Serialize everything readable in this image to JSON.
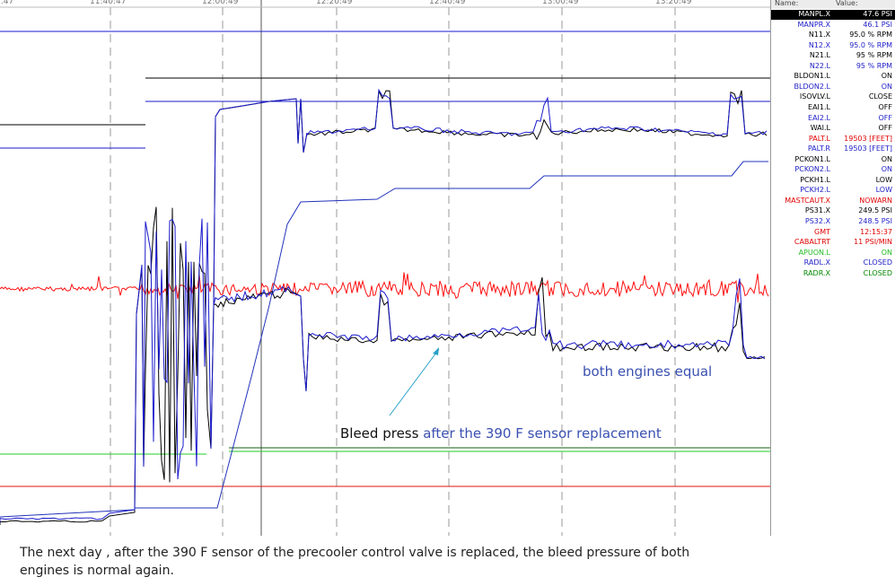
{
  "chart_data": {
    "type": "line",
    "time_ticks": [
      "..47",
      "11:40:47",
      "12:00:49",
      "12:20:49",
      "12:40:49",
      "13:00:49",
      "13:20:49"
    ],
    "series": [
      {
        "name": "MANPL.X",
        "color": "#1a1acc"
      },
      {
        "name": "MANPR.X",
        "color": "#000000"
      },
      {
        "name": "CABALTRT",
        "color": "#ff0000"
      },
      {
        "name": "PALT.L",
        "color": "#2244cc"
      }
    ]
  },
  "panel": {
    "header_name": "Name:",
    "header_value": "Value:",
    "rows": [
      {
        "name": "MANPL.X",
        "value": "47.6 PSI",
        "color": "#000000",
        "selected": true
      },
      {
        "name": "MANPR.X",
        "value": "46.1 PSI",
        "color": "#2020c8"
      },
      {
        "name": "N11.X",
        "value": "95.0 % RPM",
        "color": "#000000"
      },
      {
        "name": "N12.X",
        "value": "95.0 % RPM",
        "color": "#2020c8"
      },
      {
        "name": "N21.L",
        "value": "95 % RPM",
        "color": "#000000"
      },
      {
        "name": "N22.L",
        "value": "95 % RPM",
        "color": "#2020c8"
      },
      {
        "name": "BLDON1.L",
        "value": "ON",
        "color": "#000000"
      },
      {
        "name": "BLDON2.L",
        "value": "ON",
        "color": "#2020c8"
      },
      {
        "name": "ISOVLV.L",
        "value": "CLOSE",
        "color": "#000000"
      },
      {
        "name": "EAI1.L",
        "value": "OFF",
        "color": "#000000"
      },
      {
        "name": "EAI2.L",
        "value": "OFF",
        "color": "#2020c8"
      },
      {
        "name": "WAI.L",
        "value": "OFF",
        "color": "#000000"
      },
      {
        "name": "PALT.L",
        "value": "19503 [FEET]",
        "color": "#e00000"
      },
      {
        "name": "PALT.R",
        "value": "19503 [FEET]",
        "color": "#2020c8"
      },
      {
        "name": "PCKON1.L",
        "value": "ON",
        "color": "#000000"
      },
      {
        "name": "PCKON2.L",
        "value": "ON",
        "color": "#2020c8"
      },
      {
        "name": "PCKH1.L",
        "value": "LOW",
        "color": "#000000"
      },
      {
        "name": "PCKH2.L",
        "value": "LOW",
        "color": "#2020c8"
      },
      {
        "name": "MASTCAUT.X",
        "value": "NOWARN",
        "color": "#e00000"
      },
      {
        "name": "PS31.X",
        "value": "249.5 PSI",
        "color": "#000000"
      },
      {
        "name": "PS32.X",
        "value": "248.5 PSI",
        "color": "#2020c8"
      },
      {
        "name": "GMT",
        "value": "12:15:37",
        "color": "#e00000"
      },
      {
        "name": "CABALTRT",
        "value": "11 PSI/MIN",
        "color": "#e00000"
      },
      {
        "name": "APUON.L",
        "value": "ON",
        "color": "#22bb22"
      },
      {
        "name": "RADL.X",
        "value": "CLOSED",
        "color": "#2020c8"
      },
      {
        "name": "RADR.X",
        "value": "CLOSED",
        "color": "#008800"
      }
    ]
  },
  "annotations": {
    "equal": "both engines equal",
    "bleed_black": "Bleed press",
    "bleed_blue": "after the 390 F sensor replacement"
  },
  "caption": "The next day , after the 390 F sensor of the precooler control valve is replaced, the bleed pressure of both engines is normal again."
}
